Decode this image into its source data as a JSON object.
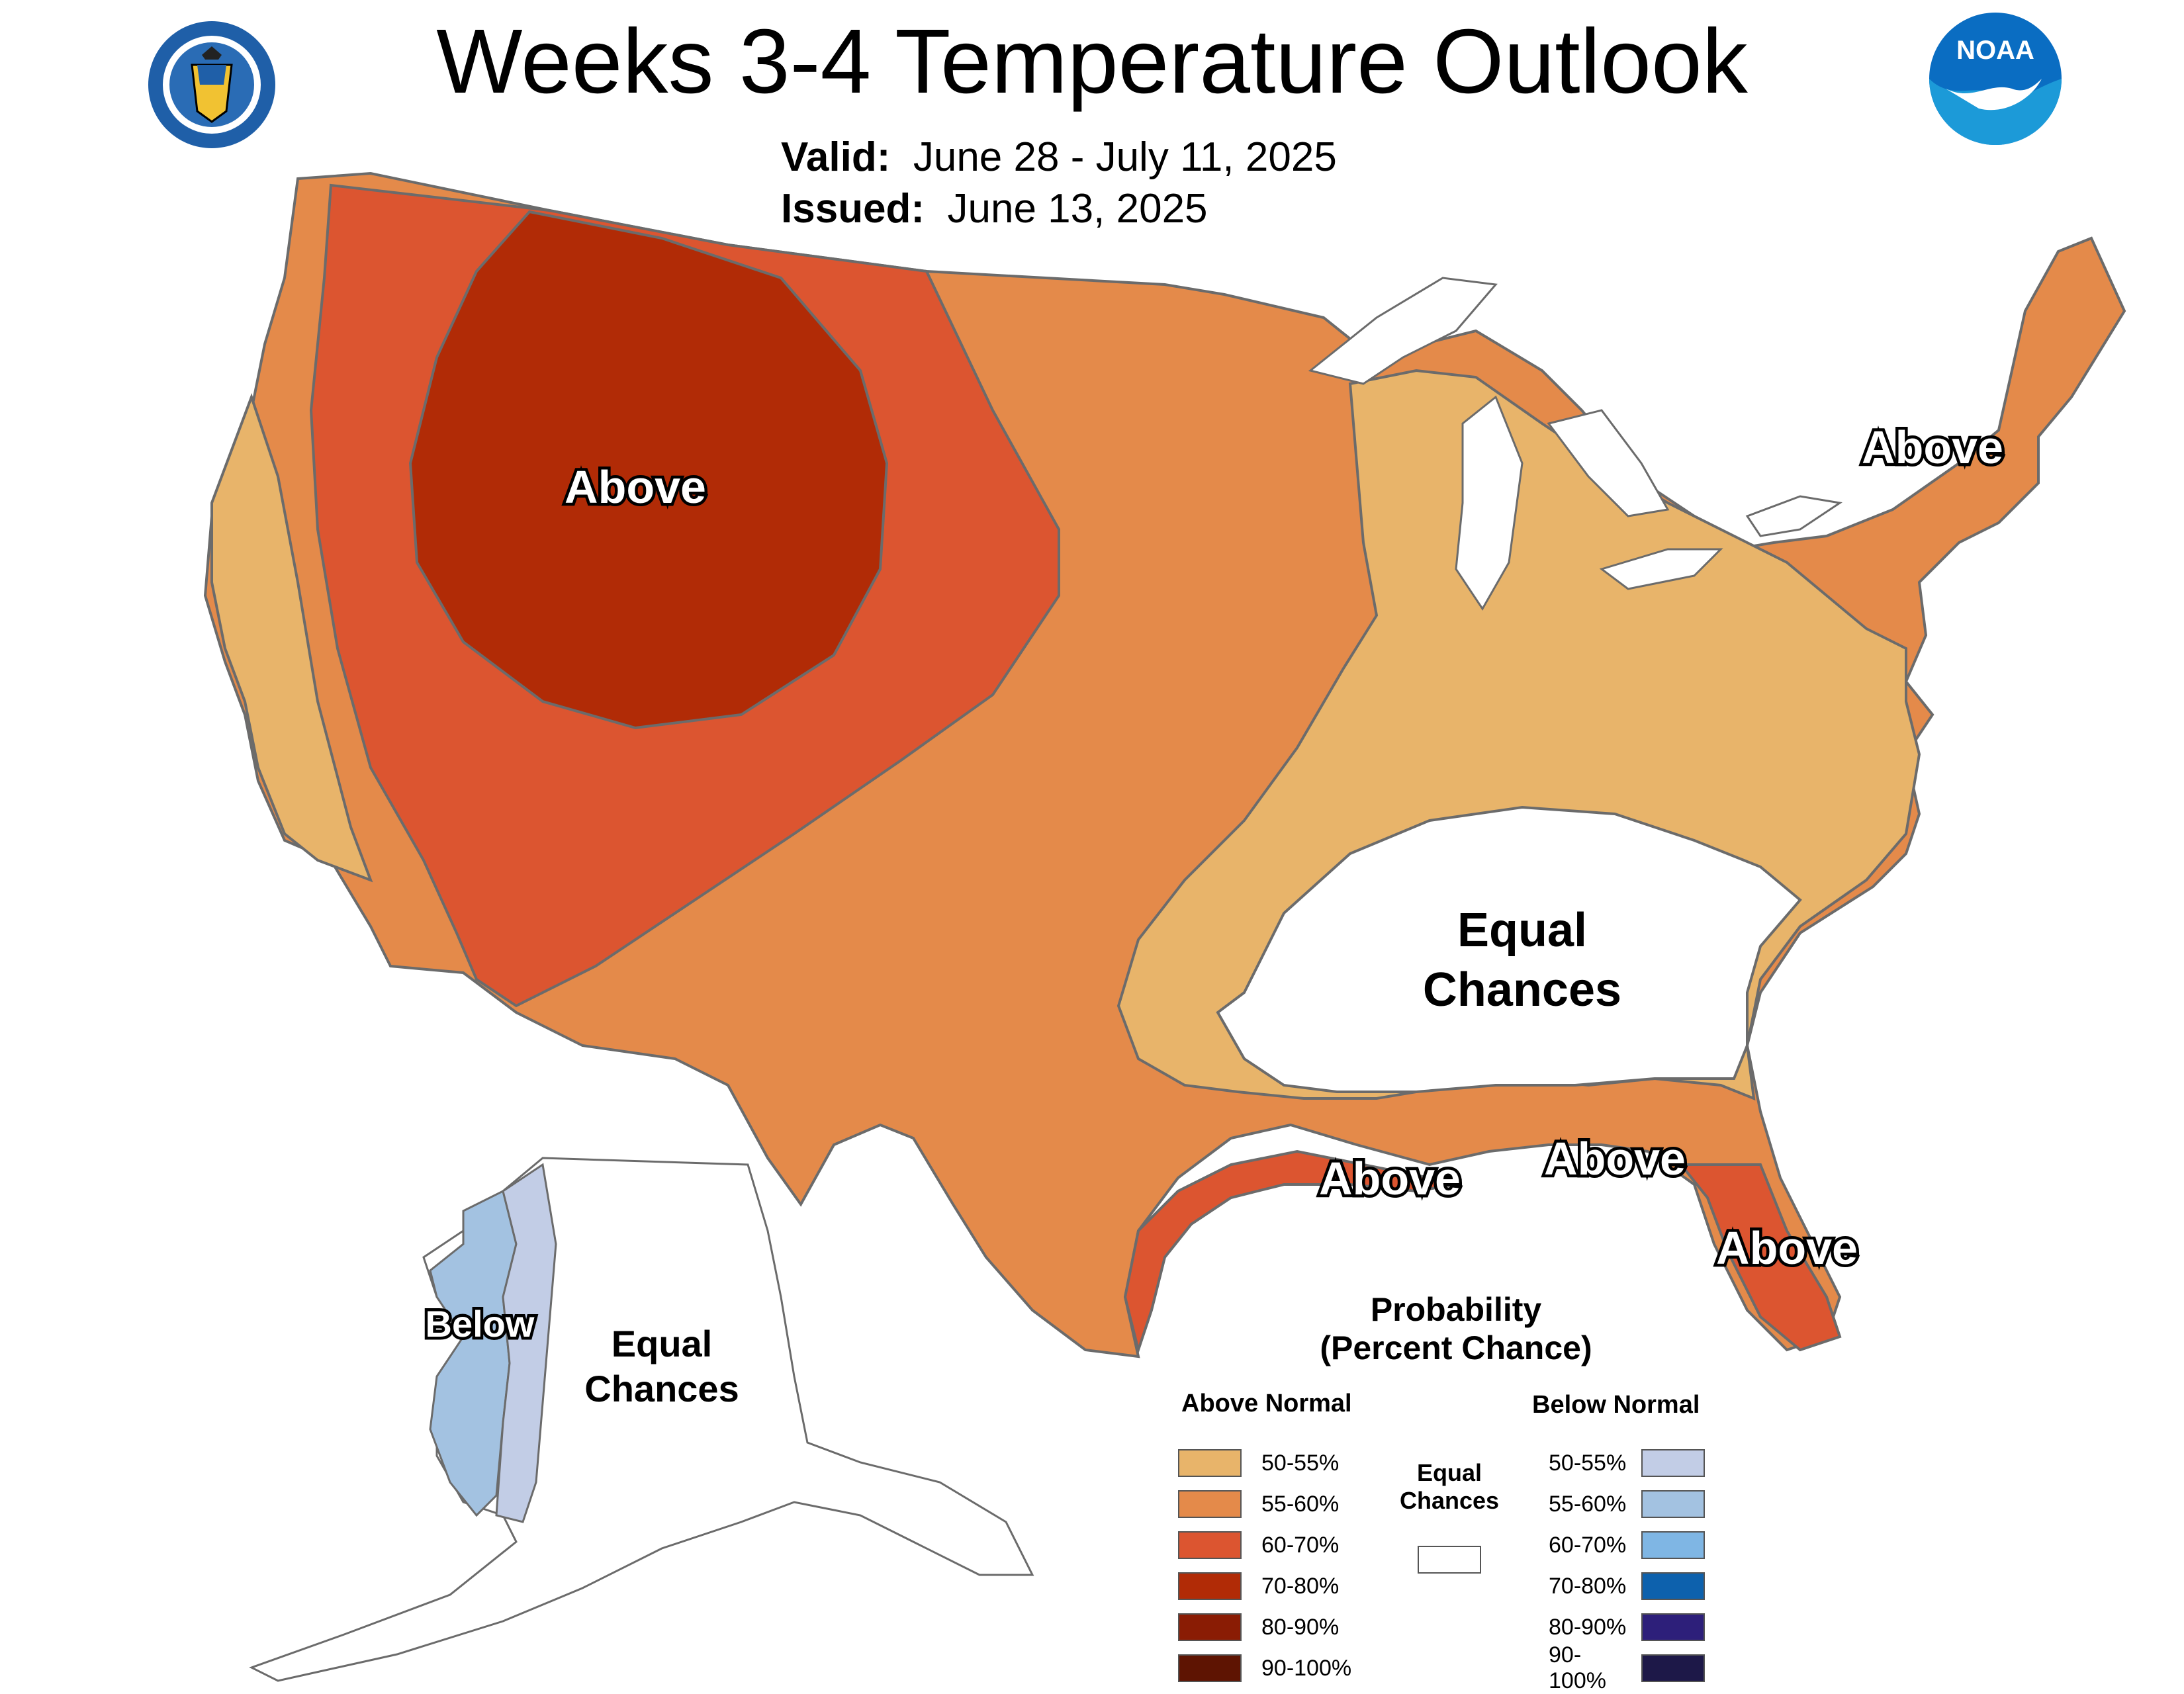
{
  "header": {
    "title": "Weeks 3-4 Temperature Outlook",
    "valid_label": "Valid:",
    "valid_value": "June 28 - July 11, 2025",
    "issued_label": "Issued:",
    "issued_value": "June 13, 2025",
    "left_logo": "department-of-commerce-seal",
    "right_logo": "noaa-logo",
    "noaa_text": "NOAA"
  },
  "map_labels": {
    "west_above": "Above",
    "northeast_above": "Above",
    "equal_chances_line1": "Equal",
    "equal_chances_line2": "Chances",
    "gulf_above_1": "Above",
    "gulf_above_2": "Above",
    "florida_above": "Above",
    "alaska_below": "Below",
    "alaska_equal_line1": "Equal",
    "alaska_equal_line2": "Chances"
  },
  "colors": {
    "above_50_55": "#e8b46a",
    "above_55_60": "#e48a4a",
    "above_60_70": "#dc5530",
    "above_70_80": "#b12b06",
    "above_80_90": "#8a1c04",
    "above_90_100": "#5e1402",
    "below_50_55": "#c2cde6",
    "below_55_60": "#a3c2e1",
    "below_60_70": "#7fb6e4",
    "below_70_80": "#0d61ad",
    "below_80_90": "#2d1f7a",
    "below_90_100": "#1d1848",
    "equal": "#ffffff",
    "border": "#6b6b6b"
  },
  "legend": {
    "title_line1": "Probability",
    "title_line2": "(Percent Chance)",
    "above_header": "Above Normal",
    "below_header": "Below Normal",
    "equal_line1": "Equal",
    "equal_line2": "Chances",
    "above_rows": [
      "50-55%",
      "55-60%",
      "60-70%",
      "70-80%",
      "80-90%",
      "90-100%"
    ],
    "below_rows": [
      "50-55%",
      "55-60%",
      "60-70%",
      "70-80%",
      "80-90%",
      "90-100%"
    ]
  }
}
